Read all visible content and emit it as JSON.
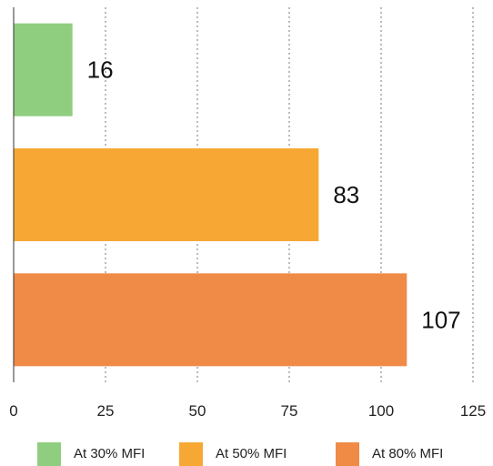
{
  "chart_data": {
    "type": "bar",
    "orientation": "horizontal",
    "categories": [
      "At 30% MFI",
      "At 50% MFI",
      "At 80% MFI"
    ],
    "values": [
      16,
      83,
      107
    ],
    "data_labels": [
      "16",
      "83",
      "107"
    ],
    "xlim": [
      0,
      125
    ],
    "xticks": [
      "0",
      "25",
      "50",
      "75",
      "100",
      "125"
    ],
    "grid": "vertical-dotted",
    "legend": "bottom",
    "colors": [
      "#8fce7e",
      "#f7a834",
      "#f08b47"
    ],
    "title": "",
    "xlabel": "",
    "ylabel": ""
  }
}
